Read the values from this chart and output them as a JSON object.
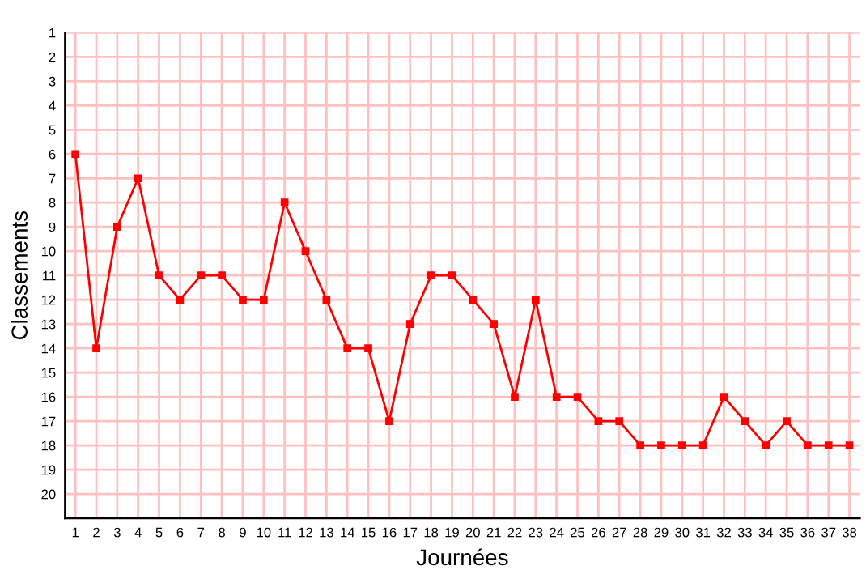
{
  "chart_data": {
    "type": "line",
    "xlabel": "Journées",
    "ylabel": "Classements",
    "x": [
      1,
      2,
      3,
      4,
      5,
      6,
      7,
      8,
      9,
      10,
      11,
      12,
      13,
      14,
      15,
      16,
      17,
      18,
      19,
      20,
      21,
      22,
      23,
      24,
      25,
      26,
      27,
      28,
      29,
      30,
      31,
      32,
      33,
      34,
      35,
      36,
      37,
      38
    ],
    "series": [
      {
        "color": "#ff0000",
        "values": [
          6,
          14,
          9,
          7,
          11,
          12,
          11,
          11,
          12,
          12,
          8,
          10,
          12,
          14,
          14,
          17,
          13,
          11,
          11,
          12,
          13,
          16,
          12,
          16,
          16,
          17,
          17,
          18,
          18,
          18,
          18,
          16,
          17,
          18,
          17,
          18,
          18,
          18
        ]
      }
    ],
    "xlim": [
      0.5,
      38.5
    ],
    "ylim": [
      21,
      1
    ],
    "xticks": [
      1,
      2,
      3,
      4,
      5,
      6,
      7,
      8,
      9,
      10,
      11,
      12,
      13,
      14,
      15,
      16,
      17,
      18,
      19,
      20,
      21,
      22,
      23,
      24,
      25,
      26,
      27,
      28,
      29,
      30,
      31,
      32,
      33,
      34,
      35,
      36,
      37,
      38
    ],
    "yticks": [
      1,
      2,
      3,
      4,
      5,
      6,
      7,
      8,
      9,
      10,
      11,
      12,
      13,
      14,
      15,
      16,
      17,
      18,
      19,
      20
    ],
    "grid": true,
    "marker": "square",
    "line_style": "solid"
  }
}
